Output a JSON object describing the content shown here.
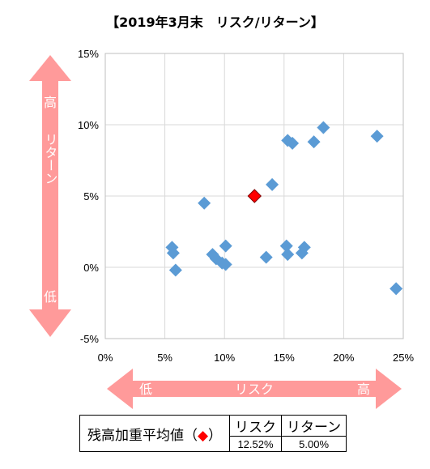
{
  "chart_data": {
    "type": "scatter",
    "title": "【2019年3月末　リスク/リターン】",
    "xlabel": "リスク",
    "ylabel": "リターン",
    "xlim": [
      0,
      25
    ],
    "ylim": [
      -5,
      15
    ],
    "xticks": [
      "0%",
      "5%",
      "10%",
      "15%",
      "20%",
      "25%"
    ],
    "yticks": [
      "15%",
      "10%",
      "5%",
      "0%",
      "-5%"
    ],
    "grid": true,
    "x_arrow": {
      "low": "低",
      "label": "リスク",
      "high": "高"
    },
    "y_arrow": {
      "high": "高",
      "label": "リターン",
      "low": "低"
    },
    "series_color": "#5b9bd5",
    "highlight_color": "#ff0000",
    "points": [
      {
        "x": 5.6,
        "y": 1.4
      },
      {
        "x": 5.7,
        "y": 1.0
      },
      {
        "x": 5.9,
        "y": -0.2
      },
      {
        "x": 8.3,
        "y": 4.5
      },
      {
        "x": 9.0,
        "y": 0.9
      },
      {
        "x": 9.3,
        "y": 0.6
      },
      {
        "x": 9.8,
        "y": 0.3
      },
      {
        "x": 10.1,
        "y": 0.2
      },
      {
        "x": 10.1,
        "y": 1.5
      },
      {
        "x": 13.5,
        "y": 0.7
      },
      {
        "x": 14.0,
        "y": 5.8
      },
      {
        "x": 15.2,
        "y": 1.5
      },
      {
        "x": 15.3,
        "y": 0.9
      },
      {
        "x": 15.3,
        "y": 8.9
      },
      {
        "x": 15.7,
        "y": 8.7
      },
      {
        "x": 16.5,
        "y": 1.0
      },
      {
        "x": 16.7,
        "y": 1.4
      },
      {
        "x": 17.5,
        "y": 8.8
      },
      {
        "x": 18.3,
        "y": 9.8
      },
      {
        "x": 22.8,
        "y": 9.2
      },
      {
        "x": 24.4,
        "y": -1.5
      }
    ],
    "highlight": {
      "x": 12.52,
      "y": 5.0
    }
  },
  "summary": {
    "label": "残高加重平均値（",
    "marker": "◆",
    "label_close": "）",
    "headers": [
      "リスク",
      "リターン"
    ],
    "values": [
      "12.52%",
      "5.00%"
    ]
  }
}
